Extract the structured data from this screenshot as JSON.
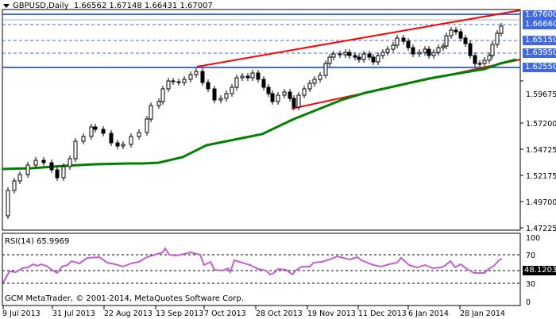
{
  "header": {
    "symbol_timeframe": "GBPUSD,Daily",
    "ohlc": "1.66562 1.67148 1.66431 1.67007"
  },
  "rsi_panel": {
    "title": "RSI(14) 65.9969",
    "current_value_label": "48.12030",
    "levels": [
      "100",
      "70",
      "30",
      "0"
    ]
  },
  "footer": {
    "copyright": "GCM MetaTrader, © 2001-2014, MetaQuotes Software Corp."
  },
  "price_labels": [
    {
      "value": "1.67600",
      "y": 19
    },
    {
      "value": "1.66660",
      "y": 31
    },
    {
      "value": "1.65150",
      "y": 48
    },
    {
      "value": "1.63950",
      "y": 64
    },
    {
      "value": "1.62550",
      "y": 83
    }
  ],
  "colors": {
    "horizontal_level": "#4169e1",
    "trendline": "#ff0000",
    "moving_average": "#008000",
    "rsi_line": "#c060d0",
    "label_bg": "#4169e1"
  },
  "chart_data": [
    {
      "type": "candlestick",
      "title": "GBPUSD,Daily",
      "subtitle": "1.66562 1.67148 1.66431 1.67007",
      "xlabel": "",
      "ylabel": "",
      "x_tick_labels": [
        "9 Jul 2013",
        "31 Jul 2013",
        "22 Aug 2013",
        "13 Sep 2013",
        "7 Oct 2013",
        "28 Oct 2013",
        "19 Nov 2013",
        "11 Dec 2013",
        "6 Jan 2014",
        "28 Jan 2014"
      ],
      "y_tick_labels": [
        "1.59675",
        "1.57200",
        "1.54725",
        "1.52175",
        "1.49700",
        "1.47225"
      ],
      "ylim": [
        1.47,
        1.68
      ],
      "grid": false,
      "horizontal_levels": [
        1.676,
        1.6666,
        1.6515,
        1.6395,
        1.6255
      ],
      "dashed_levels": [
        1.6666,
        1.6515,
        1.6395
      ],
      "trendlines": [
        {
          "name": "upper channel",
          "from": [
            "13 Sep 2013",
            1.6265
          ],
          "to": [
            "Feb 2014",
            1.6776
          ]
        },
        {
          "name": "lower channel",
          "from": [
            "28 Oct 2013",
            1.5865
          ],
          "to": [
            "Feb 2014",
            1.6275
          ]
        }
      ],
      "series": [
        {
          "name": "Moving Average",
          "approx_values": [
            1.534,
            1.536,
            1.54,
            1.553,
            1.571,
            1.578,
            1.595,
            1.612,
            1.622,
            1.63
          ]
        },
        {
          "name": "Close (approx, per tick date)",
          "approx_values": [
            1.48,
            1.522,
            1.555,
            1.601,
            1.613,
            1.6,
            1.637,
            1.647,
            1.645,
            1.63,
            1.67
          ]
        }
      ]
    },
    {
      "type": "line",
      "title": "RSI(14) 65.9969",
      "ylim": [
        0,
        100
      ],
      "levels": [
        70,
        30
      ],
      "y_tick_labels": [
        "100",
        "70",
        "30",
        "0"
      ],
      "marker_label": "48.12030",
      "x_tick_labels": [
        "9 Jul 2013",
        "31 Jul 2013",
        "22 Aug 2013",
        "13 Sep 2013",
        "7 Oct 2013",
        "28 Oct 2013",
        "19 Nov 2013",
        "11 Dec 2013",
        "6 Jan 2014",
        "28 Jan 2014"
      ],
      "approx_values": [
        38,
        56,
        60,
        62,
        65,
        70,
        66,
        55,
        52,
        60,
        50,
        62,
        70,
        63,
        57,
        47,
        65
      ]
    }
  ]
}
